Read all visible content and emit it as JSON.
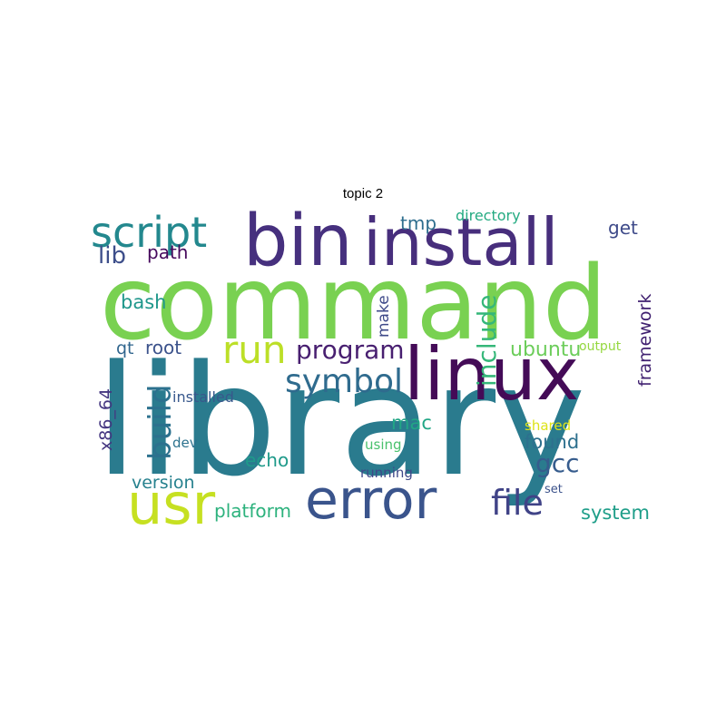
{
  "title": "topic 2",
  "words": [
    {
      "text": "library",
      "color": "#2a7b8e",
      "weight": 1.0
    },
    {
      "text": "command",
      "color": "#79d151",
      "weight": 0.95
    },
    {
      "text": "bin",
      "color": "#46307e",
      "weight": 0.55
    },
    {
      "text": "install",
      "color": "#472e7c",
      "weight": 0.52
    },
    {
      "text": "linux",
      "color": "#440b57",
      "weight": 0.5
    },
    {
      "text": "error",
      "color": "#3a548c",
      "weight": 0.42
    },
    {
      "text": "usr",
      "color": "#c6e021",
      "weight": 0.42
    },
    {
      "text": "script",
      "color": "#23888e",
      "weight": 0.33
    },
    {
      "text": "run",
      "color": "#bcdf27",
      "weight": 0.3
    },
    {
      "text": "file",
      "color": "#404387",
      "weight": 0.26
    },
    {
      "text": "symbol",
      "color": "#2f6b8e",
      "weight": 0.26
    },
    {
      "text": "build",
      "color": "#2c718e",
      "weight": 0.24
    },
    {
      "text": "include",
      "color": "#35b779",
      "weight": 0.22
    },
    {
      "text": "program",
      "color": "#481f70",
      "weight": 0.2
    },
    {
      "text": "gcc",
      "color": "#365c8d",
      "weight": 0.18
    },
    {
      "text": "lib",
      "color": "#3d4e8a",
      "weight": 0.17
    },
    {
      "text": "ubuntu",
      "color": "#6ccd5a",
      "weight": 0.15
    },
    {
      "text": "bash",
      "color": "#1f978b",
      "weight": 0.14
    },
    {
      "text": "mac",
      "color": "#21a685",
      "weight": 0.14
    },
    {
      "text": "system",
      "color": "#1f9e89",
      "weight": 0.14
    },
    {
      "text": "platform",
      "color": "#2db27d",
      "weight": 0.14
    },
    {
      "text": "found",
      "color": "#2d708e",
      "weight": 0.13
    },
    {
      "text": "framework",
      "color": "#3f1f6f",
      "weight": 0.13
    },
    {
      "text": "root",
      "color": "#3b528b",
      "weight": 0.13
    },
    {
      "text": "path",
      "color": "#46085c",
      "weight": 0.13
    },
    {
      "text": "tmp",
      "color": "#2e6e8e",
      "weight": 0.13
    },
    {
      "text": "get",
      "color": "#3e4a89",
      "weight": 0.13
    },
    {
      "text": "echo",
      "color": "#1f9a8a",
      "weight": 0.13
    },
    {
      "text": "version",
      "color": "#26818e",
      "weight": 0.12
    },
    {
      "text": "x86_64",
      "color": "#453781",
      "weight": 0.12
    },
    {
      "text": "make",
      "color": "#3e4989",
      "weight": 0.11
    },
    {
      "text": "qt",
      "color": "#31668e",
      "weight": 0.11
    },
    {
      "text": "installed",
      "color": "#38588c",
      "weight": 0.1
    },
    {
      "text": "directory",
      "color": "#25ab82",
      "weight": 0.1
    },
    {
      "text": "output",
      "color": "#95d840",
      "weight": 0.09
    },
    {
      "text": "using",
      "color": "#4ac16d",
      "weight": 0.09
    },
    {
      "text": "running",
      "color": "#3f4889",
      "weight": 0.09
    },
    {
      "text": "dev",
      "color": "#2c728e",
      "weight": 0.09
    },
    {
      "text": "shared",
      "color": "#dde318",
      "weight": 0.09
    },
    {
      "text": "set",
      "color": "#3b528b",
      "weight": 0.08
    }
  ]
}
